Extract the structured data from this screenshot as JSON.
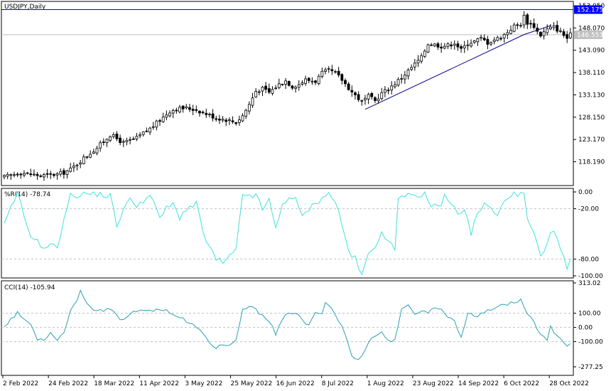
{
  "chart_data": [
    {
      "type": "candlestick",
      "symbol_label": "USDJPY,Daily",
      "x_tick_labels": [
        "2 Feb 2022",
        "24 Feb 2022",
        "18 Mar 2022",
        "11 Apr 2022",
        "3 May 2022",
        "25 May 2022",
        "16 Jun 2022",
        "8 Jul 2022",
        "1 Aug 2022",
        "23 Aug 2022",
        "14 Sep 2022",
        "6 Oct 2022",
        "28 Oct 2022"
      ],
      "y_tick_labels": [
        "153.050",
        "148.070",
        "143.090",
        "138.110",
        "133.130",
        "128.150",
        "123.170",
        "118.190"
      ],
      "ylim": [
        113.2,
        153.05
      ],
      "price_tags": [
        {
          "label": "152.175",
          "value": 152.175,
          "color": "#0000ff"
        },
        {
          "label": "146.553",
          "value": 146.553,
          "color": "#c0c0c0"
        }
      ],
      "trendlines": [
        {
          "x": [
            109,
            157
          ],
          "y": [
            129.9,
            146.6
          ],
          "color": "#00008b"
        },
        {
          "x": [
            157,
            165
          ],
          "y": [
            146.6,
            148.6
          ],
          "color": "#00008b"
        }
      ],
      "close_anchors": [
        [
          0,
          114.8
        ],
        [
          5,
          115.8
        ],
        [
          8,
          115.4
        ],
        [
          11,
          115.1
        ],
        [
          16,
          115.4
        ],
        [
          18,
          115.8
        ],
        [
          20,
          116.5
        ],
        [
          24,
          119.0
        ],
        [
          28,
          121.3
        ],
        [
          32,
          124.2
        ],
        [
          33,
          123.8
        ],
        [
          36,
          122.4
        ],
        [
          40,
          123.5
        ],
        [
          44,
          125.6
        ],
        [
          47,
          127.5
        ],
        [
          50,
          129.5
        ],
        [
          52,
          130.0
        ],
        [
          55,
          130.2
        ],
        [
          58,
          129.8
        ],
        [
          61,
          128.9
        ],
        [
          64,
          128.0
        ],
        [
          67,
          127.6
        ],
        [
          70,
          127.0
        ],
        [
          72,
          128.5
        ],
        [
          74,
          131.0
        ],
        [
          76,
          134.0
        ],
        [
          78,
          134.5
        ],
        [
          80,
          133.7
        ],
        [
          83,
          135.5
        ],
        [
          85,
          136.3
        ],
        [
          87,
          135.0
        ],
        [
          89,
          135.5
        ],
        [
          91,
          136.5
        ],
        [
          94,
          136.2
        ],
        [
          96,
          138.0
        ],
        [
          98,
          138.6
        ],
        [
          100,
          138.0
        ],
        [
          102,
          136.5
        ],
        [
          105,
          133.8
        ],
        [
          108,
          131.6
        ],
        [
          110,
          132.8
        ],
        [
          112,
          131.8
        ],
        [
          114,
          133.5
        ],
        [
          116,
          134.5
        ],
        [
          118,
          135.7
        ],
        [
          120,
          137.0
        ],
        [
          122,
          138.5
        ],
        [
          124,
          140.0
        ],
        [
          126,
          141.5
        ],
        [
          128,
          144.6
        ],
        [
          130,
          144.4
        ],
        [
          132,
          144.0
        ],
        [
          134,
          144.2
        ],
        [
          136,
          144.8
        ],
        [
          138,
          143.2
        ],
        [
          140,
          144.7
        ],
        [
          142,
          145.1
        ],
        [
          144,
          145.8
        ],
        [
          146,
          144.8
        ],
        [
          148,
          145.5
        ],
        [
          150,
          146.0
        ],
        [
          152,
          147.2
        ],
        [
          154,
          148.5
        ],
        [
          156,
          149.0
        ],
        [
          157,
          150.7
        ],
        [
          158,
          149.3
        ],
        [
          160,
          148.5
        ],
        [
          161,
          147.3
        ],
        [
          162,
          146.5
        ],
        [
          164,
          147.8
        ],
        [
          166,
          148.3
        ],
        [
          168,
          147.2
        ],
        [
          169,
          146.5
        ],
        [
          170,
          145.8
        ],
        [
          171,
          146.55
        ]
      ]
    },
    {
      "type": "line",
      "label": "%R(14) -78.74",
      "y_tick_labels": [
        "0.00",
        "-20.00",
        "-80.00",
        "-100.00"
      ],
      "levels": [
        -20,
        -80
      ],
      "ylim": [
        -100,
        0
      ],
      "color": "#40e0e0",
      "anchors": [
        [
          0,
          -40
        ],
        [
          2,
          -20
        ],
        [
          4,
          0
        ],
        [
          6,
          -30
        ],
        [
          9,
          -60
        ],
        [
          10,
          -55
        ],
        [
          12,
          -70
        ],
        [
          14,
          -60
        ],
        [
          16,
          -70
        ],
        [
          18,
          -30
        ],
        [
          20,
          -5
        ],
        [
          24,
          -2
        ],
        [
          28,
          -2
        ],
        [
          32,
          -5
        ],
        [
          34,
          -40
        ],
        [
          36,
          -20
        ],
        [
          38,
          -10
        ],
        [
          40,
          -15
        ],
        [
          42,
          -10
        ],
        [
          44,
          -5
        ],
        [
          47,
          -30
        ],
        [
          49,
          -20
        ],
        [
          51,
          -15
        ],
        [
          53,
          -30
        ],
        [
          55,
          -20
        ],
        [
          58,
          -15
        ],
        [
          61,
          -60
        ],
        [
          64,
          -80
        ],
        [
          66,
          -85
        ],
        [
          68,
          -78
        ],
        [
          70,
          -70
        ],
        [
          72,
          -5
        ],
        [
          74,
          -3
        ],
        [
          76,
          -5
        ],
        [
          78,
          -20
        ],
        [
          80,
          -10
        ],
        [
          82,
          -45
        ],
        [
          84,
          -15
        ],
        [
          86,
          -5
        ],
        [
          88,
          -10
        ],
        [
          90,
          -30
        ],
        [
          92,
          -20
        ],
        [
          94,
          -15
        ],
        [
          96,
          -5
        ],
        [
          98,
          -3
        ],
        [
          100,
          -10
        ],
        [
          102,
          -40
        ],
        [
          104,
          -70
        ],
        [
          106,
          -80
        ],
        [
          107,
          -90
        ],
        [
          108,
          -100
        ],
        [
          110,
          -75
        ],
        [
          112,
          -65
        ],
        [
          114,
          -45
        ],
        [
          116,
          -60
        ],
        [
          118,
          -70
        ],
        [
          119,
          -5
        ],
        [
          121,
          -2
        ],
        [
          123,
          -5
        ],
        [
          125,
          -10
        ],
        [
          127,
          -2
        ],
        [
          129,
          -15
        ],
        [
          131,
          -20
        ],
        [
          133,
          -5
        ],
        [
          135,
          -15
        ],
        [
          137,
          -25
        ],
        [
          139,
          -20
        ],
        [
          141,
          -50
        ],
        [
          143,
          -25
        ],
        [
          145,
          -15
        ],
        [
          147,
          -20
        ],
        [
          149,
          -30
        ],
        [
          151,
          -10
        ],
        [
          153,
          -2
        ],
        [
          155,
          -5
        ],
        [
          157,
          -2
        ],
        [
          158,
          -35
        ],
        [
          160,
          -50
        ],
        [
          162,
          -80
        ],
        [
          164,
          -65
        ],
        [
          165,
          -45
        ],
        [
          167,
          -55
        ],
        [
          169,
          -80
        ],
        [
          170,
          -95
        ],
        [
          171,
          -78.74
        ]
      ]
    },
    {
      "type": "line",
      "label": "CCI(14) -105.94",
      "y_tick_labels": [
        "313.02",
        "100.00",
        "0.00",
        "-100.00",
        "-277.25"
      ],
      "levels": [
        100,
        0,
        -100
      ],
      "ylim": [
        -277.25,
        313.02
      ],
      "color": "#2ba0b4",
      "anchors": [
        [
          0,
          10
        ],
        [
          2,
          60
        ],
        [
          4,
          100
        ],
        [
          6,
          60
        ],
        [
          8,
          20
        ],
        [
          10,
          -80
        ],
        [
          12,
          -80
        ],
        [
          14,
          -40
        ],
        [
          16,
          -80
        ],
        [
          18,
          -40
        ],
        [
          20,
          120
        ],
        [
          22,
          200
        ],
        [
          23,
          250
        ],
        [
          25,
          180
        ],
        [
          27,
          120
        ],
        [
          30,
          110
        ],
        [
          32,
          130
        ],
        [
          34,
          80
        ],
        [
          36,
          50
        ],
        [
          38,
          100
        ],
        [
          40,
          120
        ],
        [
          42,
          130
        ],
        [
          44,
          110
        ],
        [
          46,
          120
        ],
        [
          48,
          130
        ],
        [
          50,
          110
        ],
        [
          52,
          80
        ],
        [
          54,
          60
        ],
        [
          56,
          20
        ],
        [
          58,
          10
        ],
        [
          60,
          -50
        ],
        [
          62,
          -110
        ],
        [
          64,
          -140
        ],
        [
          66,
          -120
        ],
        [
          68,
          -130
        ],
        [
          70,
          -100
        ],
        [
          72,
          120
        ],
        [
          74,
          150
        ],
        [
          76,
          120
        ],
        [
          78,
          90
        ],
        [
          80,
          50
        ],
        [
          82,
          -50
        ],
        [
          84,
          50
        ],
        [
          86,
          110
        ],
        [
          88,
          100
        ],
        [
          90,
          50
        ],
        [
          92,
          10
        ],
        [
          94,
          100
        ],
        [
          96,
          110
        ],
        [
          97,
          180
        ],
        [
          99,
          130
        ],
        [
          101,
          50
        ],
        [
          103,
          -50
        ],
        [
          105,
          -200
        ],
        [
          106,
          -230
        ],
        [
          108,
          -200
        ],
        [
          110,
          -100
        ],
        [
          112,
          -60
        ],
        [
          114,
          -30
        ],
        [
          116,
          -100
        ],
        [
          118,
          -80
        ],
        [
          120,
          120
        ],
        [
          122,
          150
        ],
        [
          124,
          100
        ],
        [
          126,
          120
        ],
        [
          128,
          100
        ],
        [
          130,
          150
        ],
        [
          132,
          120
        ],
        [
          134,
          80
        ],
        [
          136,
          50
        ],
        [
          138,
          -80
        ],
        [
          140,
          110
        ],
        [
          142,
          80
        ],
        [
          144,
          90
        ],
        [
          146,
          120
        ],
        [
          148,
          130
        ],
        [
          150,
          170
        ],
        [
          152,
          160
        ],
        [
          154,
          180
        ],
        [
          156,
          190
        ],
        [
          158,
          100
        ],
        [
          160,
          40
        ],
        [
          162,
          -50
        ],
        [
          164,
          -100
        ],
        [
          165,
          0
        ],
        [
          167,
          -50
        ],
        [
          169,
          -100
        ],
        [
          170,
          -130
        ],
        [
          171,
          -105.94
        ]
      ]
    }
  ],
  "colors": {
    "bull": "#ffffff",
    "bear": "#000000",
    "grid": "#c0c0c0",
    "panel_border": "#000000",
    "blue_line": "#0000ff"
  }
}
